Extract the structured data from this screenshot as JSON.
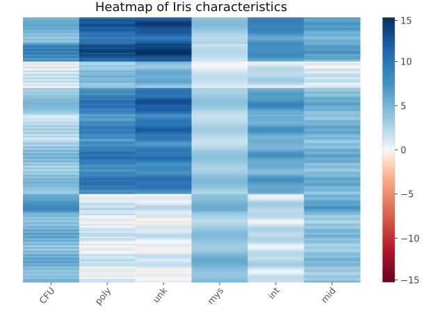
{
  "chart_data": {
    "type": "heatmap",
    "title": "Heatmap of Iris characteristics",
    "xlabel": "",
    "ylabel": "",
    "columns": [
      "CFU",
      "poly",
      "unk",
      "mys",
      "int",
      "mid"
    ],
    "row_count": 150,
    "colormap": "RdBu",
    "vmin": -15,
    "vmax": 15,
    "colorbar_ticks": [
      15,
      10,
      5,
      0,
      -5,
      -10,
      -15
    ],
    "colorbar_tick_labels": [
      "15",
      "10",
      "5",
      "0",
      "−5",
      "−10",
      "−15"
    ],
    "segments": [
      {
        "rows": [
          0,
          15
        ],
        "values": [
          5,
          11,
          12,
          4,
          8,
          6
        ]
      },
      {
        "rows": [
          15,
          25
        ],
        "values": [
          8,
          12,
          13,
          2,
          7,
          6
        ]
      },
      {
        "rows": [
          25,
          40
        ],
        "values": [
          1,
          4,
          5,
          0.5,
          2,
          1
        ]
      },
      {
        "rows": [
          40,
          55
        ],
        "values": [
          4,
          9,
          11,
          3,
          7,
          5
        ]
      },
      {
        "rows": [
          55,
          70
        ],
        "values": [
          2,
          8,
          10,
          3,
          6,
          5
        ]
      },
      {
        "rows": [
          70,
          100
        ],
        "values": [
          4,
          9,
          9,
          3,
          6,
          5
        ]
      },
      {
        "rows": [
          100,
          110
        ],
        "values": [
          7,
          1,
          1,
          5,
          2,
          6
        ]
      },
      {
        "rows": [
          110,
          150
        ],
        "values": [
          5,
          1,
          0.8,
          4,
          1.8,
          4
        ]
      }
    ]
  }
}
